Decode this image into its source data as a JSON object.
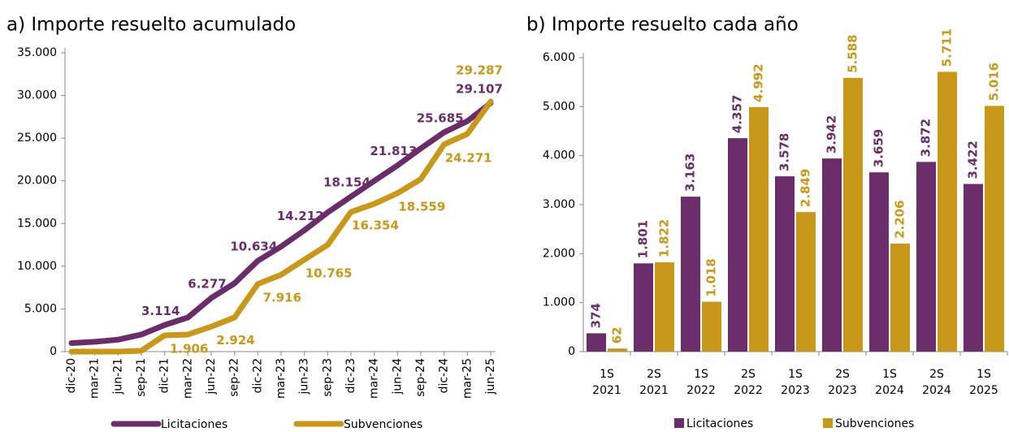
{
  "chart_data": [
    {
      "type": "line",
      "title": "a) Importe resuelto acumulado",
      "categories": [
        "dic-20",
        "mar-21",
        "jun-21",
        "sep-21",
        "dic-21",
        "mar-22",
        "jun-22",
        "sep-22",
        "dic-22",
        "mar-23",
        "jun-23",
        "sep-23",
        "dic-23",
        "mar-24",
        "jun-24",
        "sep-24",
        "dic-24",
        "mar-25",
        "jun-25"
      ],
      "series": [
        {
          "name": "Licitaciones",
          "color": "#6a2d6a",
          "values": [
            1000,
            1150,
            1400,
            2000,
            3114,
            4000,
            6277,
            8000,
            10634,
            12300,
            14212,
            16300,
            18154,
            20000,
            21813,
            23800,
            25685,
            27000,
            29107
          ],
          "value_labels": [
            null,
            null,
            null,
            null,
            "3.114",
            null,
            "6.277",
            null,
            "10.634",
            null,
            "14.212",
            null,
            "18.154",
            null,
            "21.813",
            null,
            "25.685",
            null,
            "29.107"
          ]
        },
        {
          "name": "Subvenciones",
          "color": "#c9971a",
          "values": [
            0,
            0,
            0,
            100,
            1906,
            2000,
            2924,
            4000,
            7916,
            9000,
            10765,
            12500,
            16354,
            17300,
            18559,
            20200,
            24271,
            25500,
            29287
          ],
          "value_labels": [
            null,
            null,
            null,
            null,
            "1.906",
            null,
            "2.924",
            null,
            "7.916",
            null,
            "10.765",
            null,
            "16.354",
            null,
            "18.559",
            null,
            "24.271",
            null,
            "29.287"
          ]
        }
      ],
      "ylim": [
        0,
        35000
      ],
      "yticks": [
        0,
        {
          "value": 5000,
          "label": "5.000"
        },
        {
          "value": 10000,
          "label": "10.000"
        },
        {
          "value": 15000,
          "label": "15.000"
        },
        {
          "value": 20000,
          "label": "20.000"
        },
        {
          "value": 25000,
          "label": "25.000"
        },
        {
          "value": 30000,
          "label": "30.000"
        },
        {
          "value": 35000,
          "label": "35.000"
        }
      ]
    },
    {
      "type": "bar",
      "title": "b) Importe resuelto cada año",
      "categories": [
        [
          "1S",
          "2021"
        ],
        [
          "2S",
          "2021"
        ],
        [
          "1S",
          "2022"
        ],
        [
          "2S",
          "2022"
        ],
        [
          "1S",
          "2023"
        ],
        [
          "2S",
          "2023"
        ],
        [
          "1S",
          "2024"
        ],
        [
          "2S",
          "2024"
        ],
        [
          "1S",
          "2025"
        ]
      ],
      "series": [
        {
          "name": "Licitaciones",
          "color": "#6a2d6a",
          "values": [
            374,
            1801,
            3163,
            4357,
            3578,
            3942,
            3659,
            3872,
            3422
          ],
          "value_labels": [
            "374",
            "1.801",
            "3.163",
            "4.357",
            "3.578",
            "3.942",
            "3.659",
            "3.872",
            "3.422"
          ]
        },
        {
          "name": "Subvenciones",
          "color": "#c9971a",
          "values": [
            62,
            1822,
            1018,
            4992,
            2849,
            5588,
            2206,
            5711,
            5016
          ],
          "value_labels": [
            "62",
            "1.822",
            "1.018",
            "4.992",
            "2.849",
            "5.588",
            "2.206",
            "5.711",
            "5.016"
          ]
        }
      ],
      "ylim": [
        0,
        6000
      ],
      "yticks": [
        0,
        {
          "value": 1000,
          "label": "1.000"
        },
        {
          "value": 2000,
          "label": "2.000"
        },
        {
          "value": 3000,
          "label": "3.000"
        },
        {
          "value": 4000,
          "label": "4.000"
        },
        {
          "value": 5000,
          "label": "5.000"
        },
        {
          "value": 6000,
          "label": "6.000"
        }
      ]
    }
  ]
}
